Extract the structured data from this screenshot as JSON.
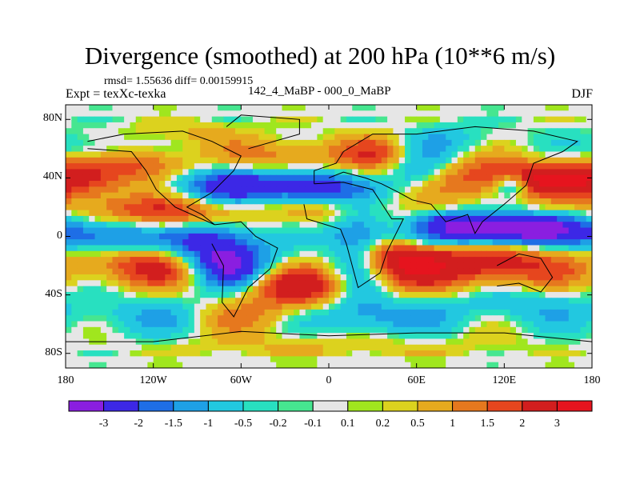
{
  "chart_data": {
    "type": "heatmap",
    "title": "Divergence (smoothed) at 200 hPa (10**6 m/s)",
    "stats_line": "rmsd= 1.55636 diff= 0.00159915",
    "left_label": "Expt = texXc-texka",
    "center_label": "142_4_MaBP - 000_0_MaBP",
    "right_label": "DJF",
    "x_axis": {
      "range": [
        -180,
        180
      ],
      "ticks": [
        -180,
        -120,
        -60,
        0,
        60,
        120,
        180
      ],
      "tick_labels": [
        "180",
        "120W",
        "60W",
        "0",
        "60E",
        "120E",
        "180"
      ]
    },
    "y_axis": {
      "range": [
        -90,
        90
      ],
      "ticks": [
        80,
        40,
        0,
        -40,
        -80
      ],
      "tick_labels": [
        "80N",
        "40N",
        "0",
        "40S",
        "80S"
      ]
    },
    "colorbar": {
      "levels": [
        "-3",
        "-2",
        "-1.5",
        "-1",
        "-0.5",
        "-0.2",
        "-0.1",
        "0.1",
        "0.2",
        "0.5",
        "1",
        "1.5",
        "2",
        "3"
      ],
      "colors": [
        "#8a1ee0",
        "#3c28e6",
        "#1e6ee6",
        "#1ea0e6",
        "#22c8e0",
        "#28e0c0",
        "#46e690",
        "#e6e6e6",
        "#a0e61e",
        "#dcd21e",
        "#e6aa1e",
        "#e6781e",
        "#e6461e",
        "#d21e1e",
        "#e6141e"
      ]
    }
  }
}
